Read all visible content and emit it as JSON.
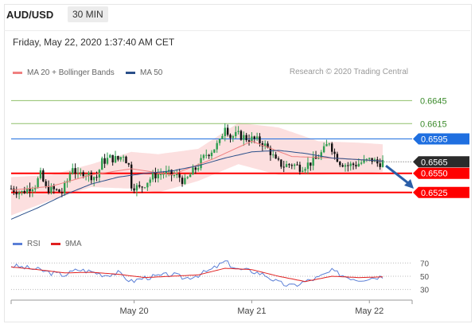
{
  "header": {
    "symbol": "AUD/USD",
    "timeframe": "30 MIN"
  },
  "datetime": "Friday, May 22, 2020 1:37:40 AM CET",
  "legend_main": {
    "items": [
      {
        "label": "MA 20 + Bollinger Bands",
        "color": "#f08080"
      },
      {
        "label": "MA 50",
        "color": "#2a4f8a"
      }
    ]
  },
  "credit": "Research © 2020 Trading Central",
  "legend_rsi": {
    "items": [
      {
        "label": "RSI",
        "color": "#5b7fd6"
      },
      {
        "label": "9MA",
        "color": "#e02020"
      }
    ]
  },
  "colors": {
    "up": "#2e9e4f",
    "down": "#111111",
    "support": "#ff0000",
    "resistance_blue": "#1f6fe0",
    "green_level": "#8fbf6a",
    "bb_fill": "#fbd2d2",
    "arrow": "#2a5ea8"
  },
  "chart_data": {
    "type": "candlestick",
    "title": "",
    "xlabel": "",
    "ylabel": "",
    "ylim": [
      0.648,
      0.666
    ],
    "x_ticks": [
      "May 20",
      "May 21",
      "May 22"
    ],
    "levels": [
      {
        "value": 0.6645,
        "label": "0.6645",
        "kind": "green"
      },
      {
        "value": 0.6615,
        "label": "0.6615",
        "kind": "green"
      },
      {
        "value": 0.6595,
        "label": "0.6595",
        "kind": "blue"
      },
      {
        "value": 0.6565,
        "label": "0.6565",
        "kind": "current"
      },
      {
        "value": 0.655,
        "label": "0.6550",
        "kind": "red"
      },
      {
        "value": 0.6525,
        "label": "0.6525",
        "kind": "red"
      }
    ],
    "price_path": [
      [
        0,
        0.653
      ],
      [
        4,
        0.6525
      ],
      [
        7,
        0.6532
      ],
      [
        9,
        0.6535
      ],
      [
        11,
        0.6548
      ],
      [
        13,
        0.653
      ],
      [
        16,
        0.6528
      ],
      [
        19,
        0.6525
      ],
      [
        21,
        0.654
      ],
      [
        23,
        0.656
      ],
      [
        25,
        0.6545
      ],
      [
        27,
        0.6552
      ],
      [
        29,
        0.6548
      ],
      [
        32,
        0.6545
      ],
      [
        34,
        0.6565
      ],
      [
        37,
        0.657
      ],
      [
        40,
        0.6568
      ],
      [
        42,
        0.6575
      ],
      [
        44,
        0.656
      ],
      [
        45,
        0.6535
      ],
      [
        48,
        0.653
      ],
      [
        51,
        0.654
      ],
      [
        54,
        0.6548
      ],
      [
        57,
        0.655
      ],
      [
        60,
        0.6548
      ],
      [
        63,
        0.6545
      ],
      [
        65,
        0.6538
      ],
      [
        67,
        0.6548
      ],
      [
        70,
        0.656
      ],
      [
        73,
        0.6575
      ],
      [
        75,
        0.658
      ],
      [
        78,
        0.659
      ],
      [
        80,
        0.6614
      ],
      [
        82,
        0.6598
      ],
      [
        85,
        0.66
      ],
      [
        88,
        0.6596
      ],
      [
        91,
        0.6594
      ],
      [
        94,
        0.659
      ],
      [
        97,
        0.6578
      ],
      [
        99,
        0.6565
      ],
      [
        102,
        0.656
      ],
      [
        105,
        0.6562
      ],
      [
        108,
        0.6558
      ],
      [
        111,
        0.6562
      ],
      [
        114,
        0.6568
      ],
      [
        117,
        0.658
      ],
      [
        119,
        0.6592
      ],
      [
        121,
        0.6575
      ],
      [
        123,
        0.6565
      ],
      [
        126,
        0.656
      ],
      [
        129,
        0.6562
      ],
      [
        132,
        0.6565
      ],
      [
        135,
        0.6568
      ],
      [
        137,
        0.6563
      ],
      [
        139,
        0.6565
      ]
    ],
    "ma20": [
      [
        0,
        0.6528
      ],
      [
        15,
        0.6533
      ],
      [
        30,
        0.6548
      ],
      [
        45,
        0.6556
      ],
      [
        60,
        0.6548
      ],
      [
        75,
        0.6568
      ],
      [
        90,
        0.6592
      ],
      [
        105,
        0.6572
      ],
      [
        120,
        0.657
      ],
      [
        139,
        0.6566
      ]
    ],
    "ma50": [
      [
        0,
        0.649
      ],
      [
        10,
        0.6505
      ],
      [
        20,
        0.6522
      ],
      [
        30,
        0.6536
      ],
      [
        40,
        0.6545
      ],
      [
        50,
        0.655
      ],
      [
        60,
        0.6553
      ],
      [
        70,
        0.656
      ],
      [
        80,
        0.657
      ],
      [
        90,
        0.6578
      ],
      [
        100,
        0.658
      ],
      [
        110,
        0.6576
      ],
      [
        120,
        0.657
      ],
      [
        139,
        0.6566
      ]
    ],
    "bb_upper": [
      [
        0,
        0.6545
      ],
      [
        15,
        0.6548
      ],
      [
        30,
        0.6562
      ],
      [
        45,
        0.6578
      ],
      [
        55,
        0.6575
      ],
      [
        70,
        0.6582
      ],
      [
        85,
        0.6616
      ],
      [
        100,
        0.661
      ],
      [
        115,
        0.6592
      ],
      [
        130,
        0.659
      ],
      [
        139,
        0.6588
      ]
    ],
    "bb_lower": [
      [
        0,
        0.6495
      ],
      [
        15,
        0.6515
      ],
      [
        30,
        0.6532
      ],
      [
        45,
        0.653
      ],
      [
        55,
        0.6525
      ],
      [
        70,
        0.654
      ],
      [
        85,
        0.6562
      ],
      [
        100,
        0.6548
      ],
      [
        115,
        0.6548
      ],
      [
        130,
        0.655
      ],
      [
        139,
        0.6552
      ]
    ],
    "projection": {
      "from": [
        139,
        0.6562
      ],
      "to": [
        150,
        0.653
      ]
    },
    "rsi": {
      "ylim": [
        20,
        80
      ],
      "ticks": [
        70,
        50,
        30
      ],
      "rsi": [
        [
          0,
          66
        ],
        [
          5,
          63
        ],
        [
          10,
          60
        ],
        [
          15,
          55
        ],
        [
          20,
          52
        ],
        [
          25,
          60
        ],
        [
          30,
          57
        ],
        [
          35,
          52
        ],
        [
          40,
          55
        ],
        [
          45,
          42
        ],
        [
          50,
          48
        ],
        [
          55,
          50
        ],
        [
          60,
          53
        ],
        [
          65,
          47
        ],
        [
          70,
          52
        ],
        [
          75,
          60
        ],
        [
          80,
          72
        ],
        [
          85,
          60
        ],
        [
          90,
          58
        ],
        [
          95,
          52
        ],
        [
          100,
          40
        ],
        [
          105,
          35
        ],
        [
          110,
          42
        ],
        [
          115,
          48
        ],
        [
          120,
          58
        ],
        [
          125,
          50
        ],
        [
          130,
          45
        ],
        [
          135,
          48
        ],
        [
          139,
          50
        ]
      ],
      "ma9": [
        [
          0,
          64
        ],
        [
          10,
          60
        ],
        [
          20,
          55
        ],
        [
          30,
          56
        ],
        [
          40,
          53
        ],
        [
          50,
          48
        ],
        [
          60,
          50
        ],
        [
          70,
          52
        ],
        [
          80,
          62
        ],
        [
          90,
          60
        ],
        [
          100,
          50
        ],
        [
          110,
          42
        ],
        [
          120,
          50
        ],
        [
          130,
          48
        ],
        [
          139,
          49
        ]
      ]
    }
  }
}
